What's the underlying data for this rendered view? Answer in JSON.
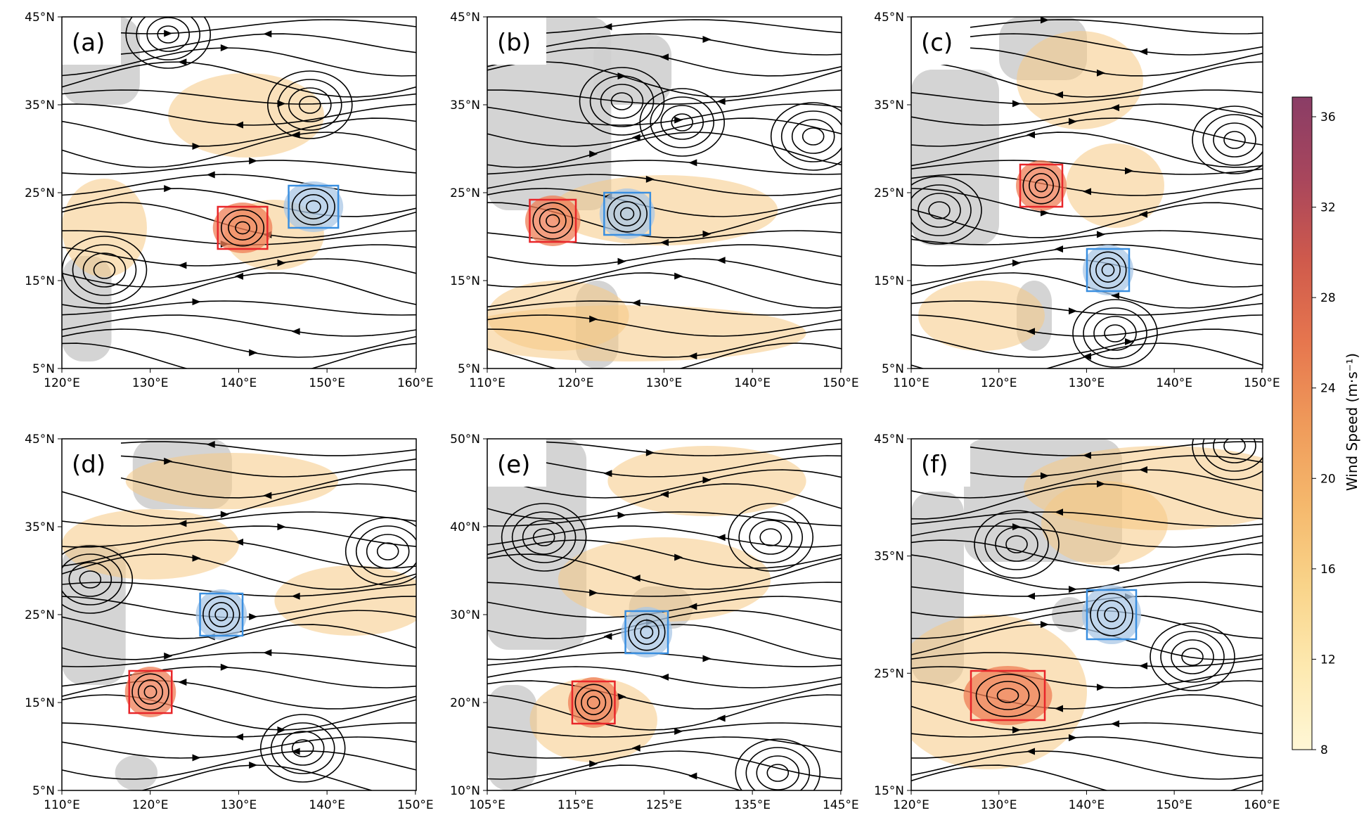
{
  "figure": {
    "colorbar": {
      "label": "Wind Speed (m·s⁻¹)",
      "ticks": [
        "8",
        "12",
        "16",
        "20",
        "24",
        "28",
        "32",
        "36"
      ],
      "colors": [
        "#fff7d6",
        "#fde9b0",
        "#f9d48a",
        "#f5b86c",
        "#ef9a5a",
        "#e6764e",
        "#cf5a4c",
        "#a8465c",
        "#8a3d66"
      ]
    },
    "box_colors": {
      "red": "#e8262a",
      "blue": "#3a8fe0"
    },
    "panels": [
      {
        "label": "(a)",
        "x_ticks": [
          "120°E",
          "130°E",
          "140°E",
          "150°E",
          "160°E"
        ],
        "y_ticks": [
          "45°N",
          "35°N",
          "25°N",
          "15°N",
          "5°N"
        ]
      },
      {
        "label": "(b)",
        "x_ticks": [
          "110°E",
          "120°E",
          "130°E",
          "140°E",
          "150°E"
        ],
        "y_ticks": [
          "45°N",
          "35°N",
          "25°N",
          "15°N",
          "5°N"
        ]
      },
      {
        "label": "(c)",
        "x_ticks": [
          "110°E",
          "120°E",
          "130°E",
          "140°E",
          "150°E"
        ],
        "y_ticks": [
          "45°N",
          "35°N",
          "25°N",
          "15°N",
          "5°N"
        ]
      },
      {
        "label": "(d)",
        "x_ticks": [
          "110°E",
          "120°E",
          "130°E",
          "140°E",
          "150°E"
        ],
        "y_ticks": [
          "45°N",
          "35°N",
          "25°N",
          "15°N",
          "5°N"
        ]
      },
      {
        "label": "(e)",
        "x_ticks": [
          "105°E",
          "115°E",
          "125°E",
          "135°E",
          "145°E"
        ],
        "y_ticks": [
          "50°N",
          "40°N",
          "30°N",
          "20°N",
          "10°N"
        ]
      },
      {
        "label": "(f)",
        "x_ticks": [
          "120°E",
          "130°E",
          "140°E",
          "150°E",
          "160°E"
        ],
        "y_ticks": [
          "45°N",
          "35°N",
          "25°N",
          "15°N"
        ]
      }
    ]
  }
}
